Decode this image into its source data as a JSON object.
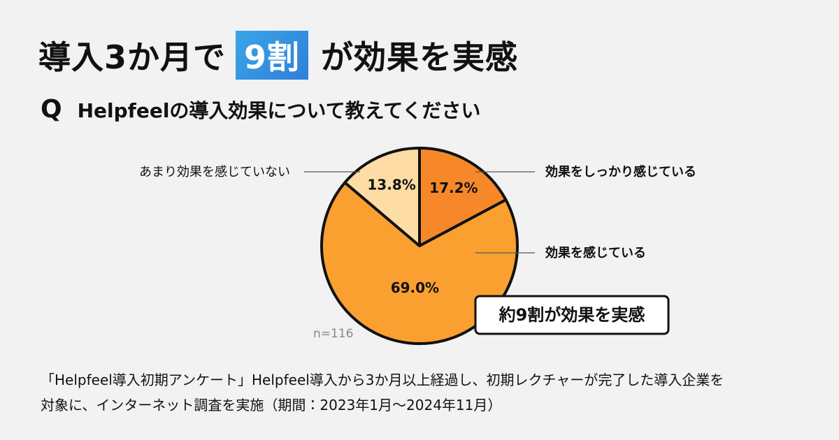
{
  "chart_data": {
    "type": "pie",
    "title_before": "導入3か月で",
    "title_highlight": "9割",
    "title_after": "が効果を実感",
    "question_marker": "Q",
    "question": "Helpfeelの導入効果について教えてください",
    "categories": [
      "効果をしっかり感じている",
      "効果を感じている",
      "あまり効果を感じていない"
    ],
    "values": [
      17.2,
      69.0,
      13.8
    ],
    "value_labels": [
      "17.2%",
      "69.0%",
      "13.8%"
    ],
    "colors": [
      "#f7882a",
      "#f9a030",
      "#fddda5"
    ],
    "sample_size": "n=116",
    "callout": "約9割が効果を実感",
    "note": [
      "「Helpfeel導入初期アンケート」Helpfeel導入から3か月以上経過し、初期レクチャーが完了した導入企業を",
      "対象に、インターネット調査を実施（期間：2023年1月〜2024年11月）"
    ]
  }
}
